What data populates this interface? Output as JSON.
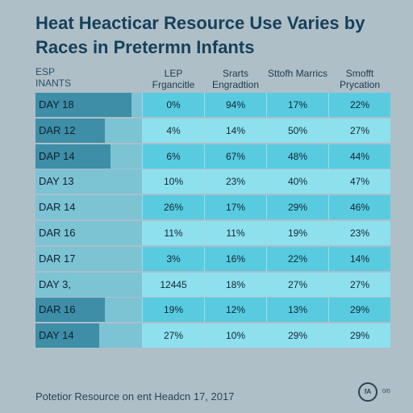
{
  "title": "Heat Heacticar Resource Use Varies by Races in Pretermn Infants",
  "corner_label": "ESP\nINANTS",
  "footer": "Potetior Resource on ent Headcn 17, 2017",
  "logo_text": "fA",
  "logo_sub": "0/0",
  "colors": {
    "background": "#aebfc8",
    "bar": "#3d8ea6",
    "label_cell": "#7cc3d4",
    "row_odd": "#58cbe0",
    "row_even": "#8ee0ee"
  },
  "chart_data": {
    "type": "table",
    "title": "Heat Heacticar Resource Use Varies by Races in Pretermn Infants",
    "columns": [
      "LEP Frgancitle",
      "Srarts Engradtion",
      "Sttofh Marrics",
      "Smofft Prycation"
    ],
    "rows": [
      {
        "label": "DAY 18",
        "bar": 0.75,
        "values": [
          "0%",
          "94%",
          "17%",
          "22%"
        ]
      },
      {
        "label": "DAR 12",
        "bar": 0.5,
        "values": [
          "4%",
          "14%",
          "50%",
          "27%"
        ]
      },
      {
        "label": "DAP 14",
        "bar": 0.55,
        "values": [
          "6%",
          "67%",
          "48%",
          "44%"
        ]
      },
      {
        "label": "DAY 13",
        "bar": 0.0,
        "values": [
          "10%",
          "23%",
          "40%",
          "47%"
        ]
      },
      {
        "label": "DAR 14",
        "bar": 0.0,
        "values": [
          "26%",
          "17%",
          "29%",
          "46%"
        ]
      },
      {
        "label": "DAR 16",
        "bar": 0.0,
        "values": [
          "11%",
          "11%",
          "19%",
          "23%"
        ]
      },
      {
        "label": "DAR 17",
        "bar": 0.0,
        "values": [
          "3%",
          "16%",
          "22%",
          "14%"
        ]
      },
      {
        "label": "DAY 3,",
        "bar": 0.0,
        "values": [
          "12445",
          "18%",
          "27%",
          "27%"
        ]
      },
      {
        "label": "DAR 16",
        "bar": 0.5,
        "values": [
          "19%",
          "12%",
          "13%",
          "29%"
        ]
      },
      {
        "label": "DAY 14",
        "bar": 0.45,
        "values": [
          "27%",
          "10%",
          "29%",
          "29%"
        ]
      }
    ]
  }
}
